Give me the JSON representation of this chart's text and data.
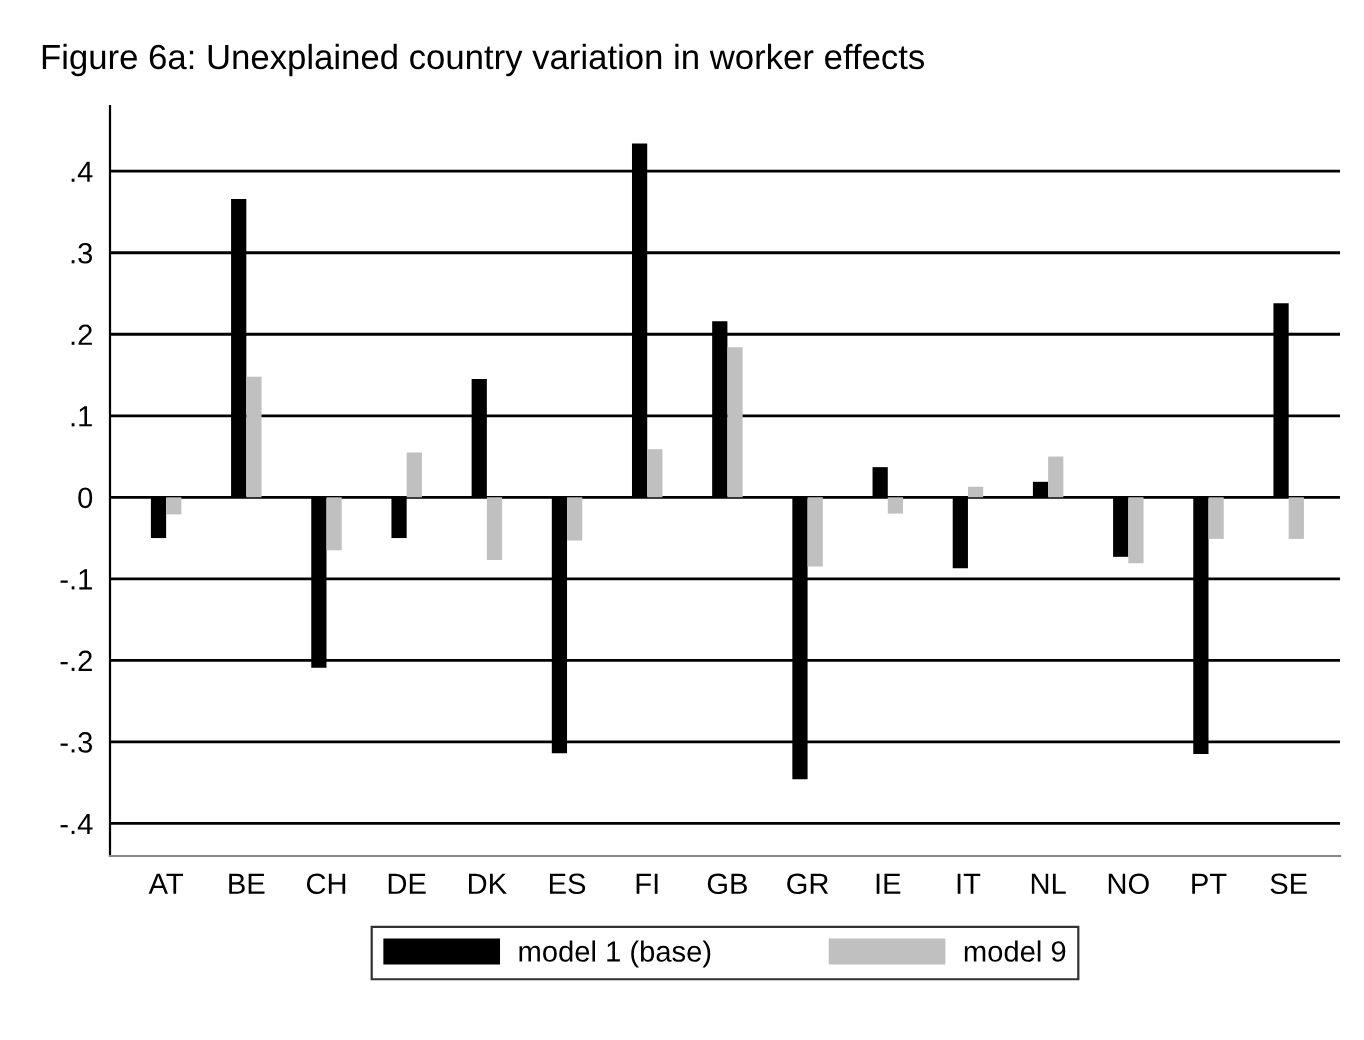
{
  "chart_data": {
    "type": "bar",
    "title": "Figure 6a: Unexplained country variation in worker effects",
    "categories": [
      "AT",
      "BE",
      "CH",
      "DE",
      "DK",
      "ES",
      "FI",
      "GB",
      "GR",
      "IE",
      "IT",
      "NL",
      "NO",
      "PT",
      "SE"
    ],
    "series": [
      {
        "name": "model 1 (base)",
        "color": "#000000",
        "values": [
          -0.05,
          0.366,
          -0.209,
          -0.05,
          0.145,
          -0.314,
          0.434,
          0.216,
          -0.346,
          0.037,
          -0.087,
          0.019,
          -0.073,
          -0.315,
          0.238
        ]
      },
      {
        "name": "model 9",
        "color": "#c0c0c0",
        "values": [
          -0.021,
          0.148,
          -0.065,
          0.055,
          -0.077,
          -0.053,
          0.059,
          0.184,
          -0.085,
          -0.02,
          0.013,
          0.05,
          -0.081,
          -0.051,
          -0.051
        ]
      }
    ],
    "ylim": [
      -0.44,
      0.48
    ],
    "yticks": [
      {
        "value": -0.4,
        "label": "-.4"
      },
      {
        "value": -0.3,
        "label": "-.3"
      },
      {
        "value": -0.2,
        "label": "-.2"
      },
      {
        "value": -0.1,
        "label": "-.1"
      },
      0,
      {
        "value": 0.1,
        "label": ".1"
      },
      {
        "value": 0.2,
        "label": ".2"
      },
      {
        "value": 0.3,
        "label": ".3"
      },
      {
        "value": 0.4,
        "label": ".4"
      }
    ],
    "grid": "y",
    "legend": "bottom"
  }
}
